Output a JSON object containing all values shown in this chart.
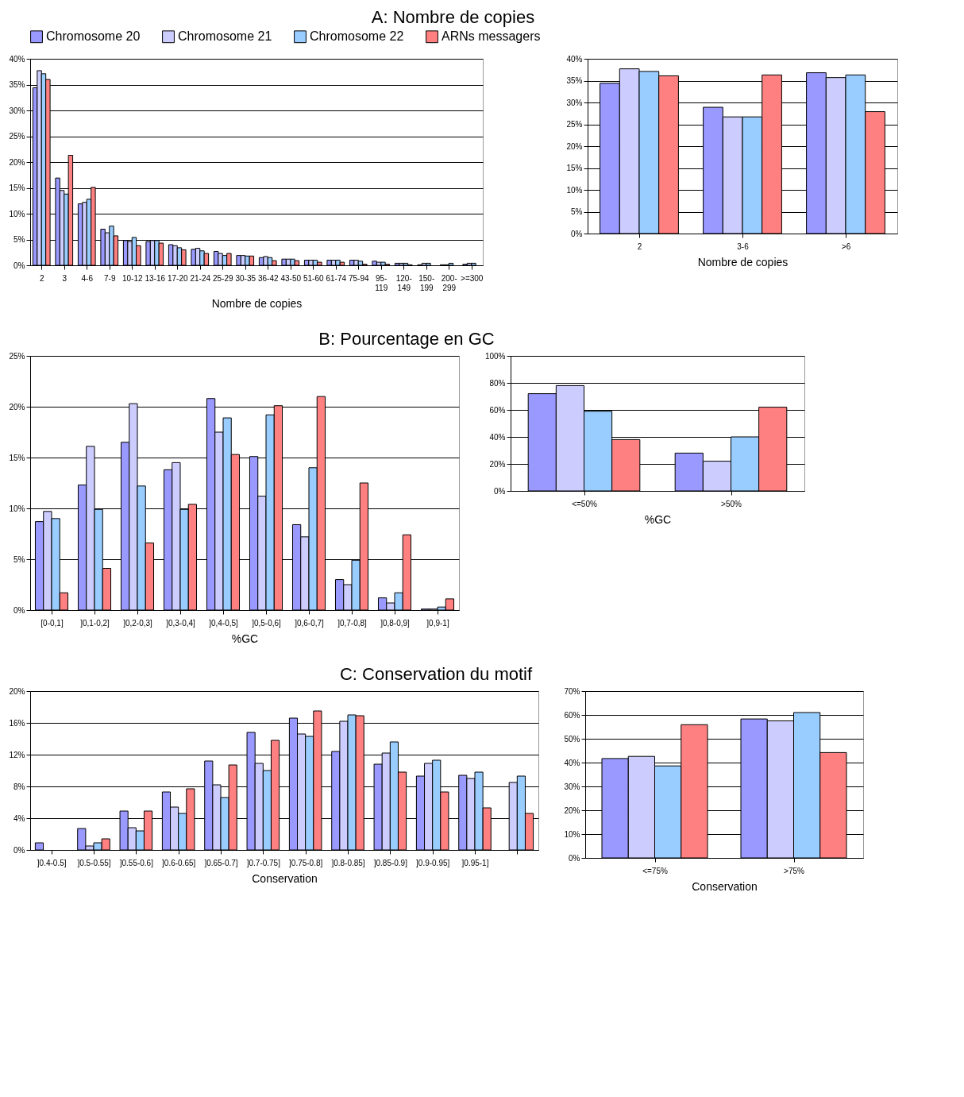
{
  "chart_data": [
    {
      "type": "bar",
      "title": "A: Nombre de copies",
      "xlabel": "Nombre de copies",
      "legend": "top",
      "grid": "y",
      "categories": [
        "2",
        "3",
        "4-6",
        "7-9",
        "10-12",
        "13-16",
        "17-20",
        "21-24",
        "25-29",
        "30-35",
        "36-42",
        "43-50",
        "51-60",
        "61-74",
        "75-94",
        "95-119",
        "120-149",
        "150-199",
        "200-299",
        ">=300"
      ],
      "ylim": [
        0,
        40
      ],
      "yticks": [
        {
          "value": 0,
          "label": "0%"
        },
        {
          "value": 5,
          "label": "5%"
        },
        {
          "value": 10,
          "label": "10%"
        },
        {
          "value": 15,
          "label": "15%"
        },
        {
          "value": 20,
          "label": "20%"
        },
        {
          "value": 25,
          "label": "25%"
        },
        {
          "value": 30,
          "label": "30%"
        },
        {
          "value": 35,
          "label": "35%"
        },
        {
          "value": 40,
          "label": "40%"
        }
      ],
      "series": [
        {
          "name": "Chromosome 20",
          "color": "#9999ff",
          "values": [
            34.4,
            16.9,
            11.9,
            7.0,
            4.8,
            4.6,
            4.0,
            3.1,
            2.7,
            1.9,
            1.5,
            1.2,
            1.0,
            1.0,
            1.0,
            0.8,
            0.4,
            0.1,
            0.1,
            0.2
          ]
        },
        {
          "name": "Chromosome 21",
          "color": "#ccccff",
          "values": [
            37.7,
            14.5,
            12.2,
            6.3,
            4.6,
            4.8,
            3.8,
            3.3,
            2.3,
            1.9,
            1.7,
            1.2,
            1.0,
            1.0,
            1.0,
            0.6,
            0.4,
            0.4,
            0.1,
            0.4
          ]
        },
        {
          "name": "Chromosome 22",
          "color": "#99ccff",
          "values": [
            37.1,
            13.8,
            12.8,
            7.6,
            5.4,
            4.8,
            3.4,
            2.8,
            1.9,
            1.8,
            1.5,
            1.2,
            1.0,
            1.0,
            0.8,
            0.6,
            0.4,
            0.4,
            0.4,
            0.4
          ]
        },
        {
          "name": "ARNs messagers",
          "color": "#ff8080",
          "values": [
            36.0,
            21.3,
            15.1,
            5.7,
            3.8,
            4.3,
            3.0,
            2.3,
            2.3,
            1.8,
            0.9,
            0.9,
            0.6,
            0.6,
            0.2,
            0.2,
            0.1,
            null,
            null,
            null
          ]
        }
      ]
    },
    {
      "type": "bar",
      "xlabel": "Nombre de copies",
      "grid": "y",
      "categories": [
        "2",
        "3-6",
        ">6"
      ],
      "ylim": [
        0,
        40
      ],
      "yticks": [
        {
          "value": 0,
          "label": "0%"
        },
        {
          "value": 5,
          "label": "5%"
        },
        {
          "value": 10,
          "label": "10%"
        },
        {
          "value": 15,
          "label": "15%"
        },
        {
          "value": 20,
          "label": "20%"
        },
        {
          "value": 25,
          "label": "25%"
        },
        {
          "value": 30,
          "label": "30%"
        },
        {
          "value": 35,
          "label": "35%"
        },
        {
          "value": 40,
          "label": "40%"
        }
      ],
      "series": [
        {
          "color": "#9999ff",
          "values": [
            34.4,
            28.9,
            36.8
          ]
        },
        {
          "color": "#ccccff",
          "values": [
            37.7,
            26.7,
            35.7
          ]
        },
        {
          "color": "#99ccff",
          "values": [
            37.1,
            26.7,
            36.3
          ]
        },
        {
          "color": "#ff8080",
          "values": [
            36.1,
            36.3,
            27.9
          ]
        }
      ]
    },
    {
      "type": "bar",
      "title": "B: Pourcentage en GC",
      "xlabel": "%GC",
      "grid": "y",
      "categories": [
        "[0-0,1]",
        "]0,1-0,2]",
        "]0,2-0,3]",
        "]0,3-0,4]",
        "]0,4-0,5]",
        "]0,5-0,6]",
        "]0,6-0,7]",
        "]0,7-0,8]",
        "]0,8-0,9]",
        "]0,9-1]"
      ],
      "ylim": [
        0,
        25
      ],
      "yticks": [
        {
          "value": 0,
          "label": "0%"
        },
        {
          "value": 5,
          "label": "5%"
        },
        {
          "value": 10,
          "label": "10%"
        },
        {
          "value": 15,
          "label": "15%"
        },
        {
          "value": 20,
          "label": "20%"
        },
        {
          "value": 25,
          "label": "25%"
        }
      ],
      "series": [
        {
          "color": "#9999ff",
          "values": [
            8.7,
            12.3,
            16.5,
            13.8,
            20.8,
            15.1,
            8.4,
            3.0,
            1.2,
            0.1
          ]
        },
        {
          "color": "#ccccff",
          "values": [
            9.7,
            16.1,
            20.3,
            14.5,
            17.5,
            11.2,
            7.2,
            2.5,
            0.7,
            0.1
          ]
        },
        {
          "color": "#99ccff",
          "values": [
            9.0,
            9.9,
            12.2,
            9.9,
            18.9,
            19.2,
            14.0,
            4.9,
            1.7,
            0.3
          ]
        },
        {
          "color": "#ff8080",
          "values": [
            1.7,
            4.1,
            6.6,
            10.4,
            15.3,
            20.1,
            21.0,
            12.5,
            7.4,
            1.1
          ]
        }
      ]
    },
    {
      "type": "bar",
      "xlabel": "%GC",
      "grid": "y",
      "categories": [
        "<=50%",
        ">50%"
      ],
      "ylim": [
        0,
        100
      ],
      "yticks": [
        {
          "value": 0,
          "label": "0%"
        },
        {
          "value": 20,
          "label": "20%"
        },
        {
          "value": 40,
          "label": "40%"
        },
        {
          "value": 60,
          "label": "60%"
        },
        {
          "value": 80,
          "label": "80%"
        },
        {
          "value": 100,
          "label": "100%"
        }
      ],
      "series": [
        {
          "color": "#9999ff",
          "values": [
            72,
            28
          ]
        },
        {
          "color": "#ccccff",
          "values": [
            78,
            22
          ]
        },
        {
          "color": "#99ccff",
          "values": [
            59,
            40
          ]
        },
        {
          "color": "#ff8080",
          "values": [
            38,
            62
          ]
        }
      ]
    },
    {
      "type": "bar",
      "title": "C: Conservation du motif",
      "xlabel": "Conservation",
      "grid": "y",
      "categories": [
        "]0.4-0.5]",
        "]0.5-0.55]",
        "]0.55-0.6]",
        "]0.6-0.65]",
        "]0.65-0.7]",
        "]0.7-0.75]",
        "]0.75-0.8]",
        "]0.8-0.85]",
        "]0.85-0.9]",
        "]0.9-0.95]",
        "]0.95-1]",
        null
      ],
      "ylim": [
        0,
        20
      ],
      "yticks": [
        {
          "value": 0,
          "label": "0%"
        },
        {
          "value": 4,
          "label": "4%"
        },
        {
          "value": 8,
          "label": "8%"
        },
        {
          "value": 12,
          "label": "12%"
        },
        {
          "value": 16,
          "label": "16%"
        },
        {
          "value": 20,
          "label": "20%"
        }
      ],
      "series": [
        {
          "color": "#9999ff",
          "values": [
            0.9,
            2.7,
            4.9,
            7.3,
            11.2,
            14.8,
            16.6,
            12.4,
            10.8,
            9.3,
            9.4,
            null
          ]
        },
        {
          "color": "#ccccff",
          "values": [
            null,
            0.5,
            2.8,
            5.4,
            8.2,
            10.9,
            14.6,
            16.2,
            12.2,
            10.9,
            9.0,
            8.5
          ]
        },
        {
          "color": "#99ccff",
          "values": [
            null,
            0.9,
            2.4,
            4.6,
            6.6,
            10.0,
            14.3,
            17.0,
            13.6,
            11.3,
            9.8,
            9.3
          ]
        },
        {
          "color": "#ff8080",
          "values": [
            null,
            1.4,
            4.9,
            7.7,
            10.7,
            13.8,
            17.5,
            16.9,
            9.8,
            7.3,
            5.3,
            4.6
          ]
        }
      ]
    },
    {
      "type": "bar",
      "xlabel": "Conservation",
      "grid": "y",
      "categories": [
        "<=75%",
        ">75%"
      ],
      "ylim": [
        0,
        70
      ],
      "yticks": [
        {
          "value": 0,
          "label": "0%"
        },
        {
          "value": 10,
          "label": "10%"
        },
        {
          "value": 20,
          "label": "20%"
        },
        {
          "value": 30,
          "label": "30%"
        },
        {
          "value": 40,
          "label": "40%"
        },
        {
          "value": 50,
          "label": "50%"
        },
        {
          "value": 60,
          "label": "60%"
        },
        {
          "value": 70,
          "label": "70%"
        }
      ],
      "series": [
        {
          "color": "#9999ff",
          "values": [
            41.7,
            58.3
          ]
        },
        {
          "color": "#ccccff",
          "values": [
            42.6,
            57.5
          ]
        },
        {
          "color": "#99ccff",
          "values": [
            38.6,
            61.0
          ]
        },
        {
          "color": "#ff8080",
          "values": [
            55.9,
            44.2
          ]
        }
      ]
    }
  ]
}
